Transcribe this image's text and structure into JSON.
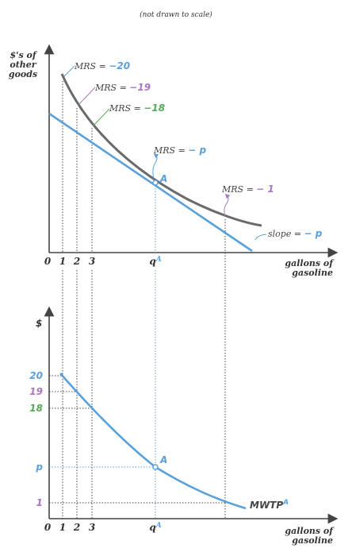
{
  "colors": {
    "blue": "#5aa1dc",
    "purple": "#a878c0",
    "green": "#5aa85a",
    "gray": "#666666",
    "axis": "#444444",
    "text": "#333333"
  },
  "figure": {
    "note": "(not drawn to scale)",
    "top_panel": {
      "y_axis_label": [
        "$'s of",
        "other",
        "goods"
      ],
      "x_axis_label": [
        "gallons of",
        "gasoline"
      ],
      "x_ticks": [
        "0",
        "1",
        "2",
        "3"
      ],
      "qA_text": "q",
      "qA_sup": "A",
      "point_label": "A",
      "mrs_prefix": "MRS = ",
      "mrs": [
        {
          "value": "−20",
          "color": "blue"
        },
        {
          "value": "−19",
          "color": "purple"
        },
        {
          "value": "−18",
          "color": "green"
        },
        {
          "value": "− p",
          "color": "blue"
        },
        {
          "value": "− 1",
          "color": "purple"
        }
      ],
      "slope_prefix": "slope = ",
      "slope_value": "− p"
    },
    "bottom_panel": {
      "y_axis_label": "$",
      "x_axis_label": [
        "gallons of",
        "gasoline"
      ],
      "x_ticks": [
        "0",
        "1",
        "2",
        "3"
      ],
      "qA_text": "q",
      "qA_sup": "A",
      "y_ticks": [
        {
          "label": "20",
          "color": "blue"
        },
        {
          "label": "19",
          "color": "purple"
        },
        {
          "label": "18",
          "color": "green"
        },
        {
          "label": "p",
          "color": "blue"
        },
        {
          "label": "1",
          "color": "purple"
        }
      ],
      "point_label": "A",
      "curve_label": "MWTP",
      "curve_label_sup": "A"
    }
  }
}
